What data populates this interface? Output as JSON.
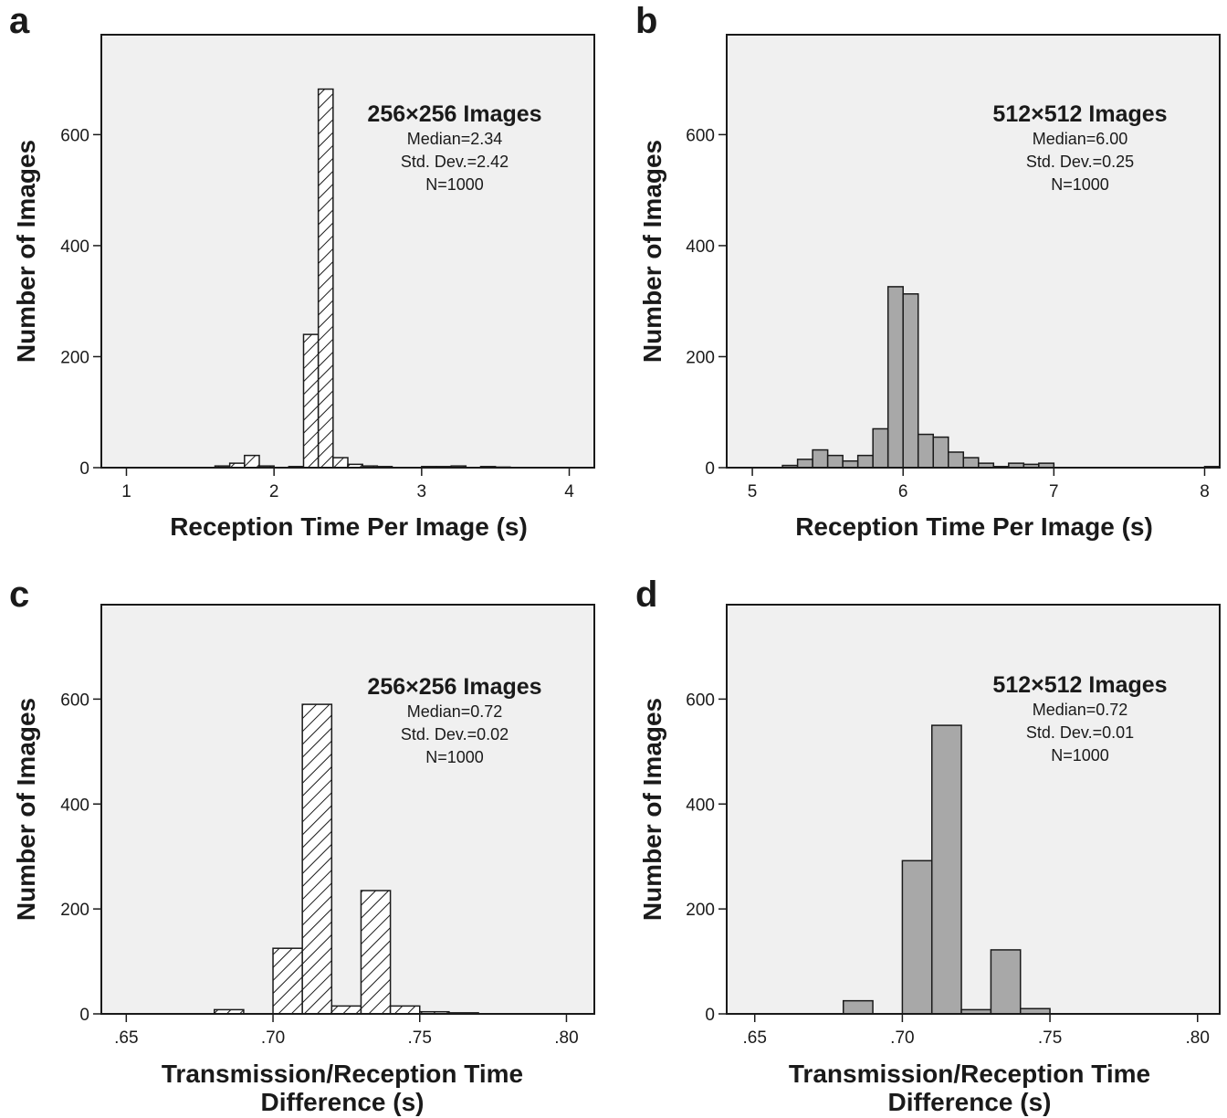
{
  "chart_data": [
    {
      "panel": "a",
      "type": "bar",
      "style": "hatched",
      "ylabel": "Number of Images",
      "xlabel_lines": [
        "Reception Time Per Image (s)"
      ],
      "annotation": {
        "title": "256×256 Images",
        "lines": [
          "Median=2.34",
          "Std. Dev.=2.42",
          "N=1000"
        ]
      },
      "xlim": [
        0.83,
        4.17
      ],
      "ylim": [
        0,
        780
      ],
      "xticks": [
        1,
        2,
        3,
        4
      ],
      "xtick_labels": [
        "1",
        "2",
        "3",
        "4"
      ],
      "yticks": [
        0,
        200,
        400,
        600
      ],
      "ytick_labels": [
        "0",
        "200",
        "400",
        "600"
      ],
      "bin_width": 0.1,
      "bins": [
        {
          "x0": 1.6,
          "count": 3
        },
        {
          "x0": 1.7,
          "count": 8
        },
        {
          "x0": 1.8,
          "count": 22
        },
        {
          "x0": 1.9,
          "count": 3
        },
        {
          "x0": 2.1,
          "count": 2
        },
        {
          "x0": 2.2,
          "count": 240
        },
        {
          "x0": 2.3,
          "count": 682
        },
        {
          "x0": 2.4,
          "count": 18
        },
        {
          "x0": 2.5,
          "count": 6
        },
        {
          "x0": 2.6,
          "count": 3
        },
        {
          "x0": 2.7,
          "count": 2
        },
        {
          "x0": 3.0,
          "count": 2
        },
        {
          "x0": 3.1,
          "count": 2
        },
        {
          "x0": 3.2,
          "count": 3
        },
        {
          "x0": 3.4,
          "count": 2
        },
        {
          "x0": 3.5,
          "count": 1
        }
      ]
    },
    {
      "panel": "b",
      "type": "bar",
      "style": "gray",
      "ylabel": "Number of Images",
      "xlabel_lines": [
        "Reception Time Per Image (s)"
      ],
      "annotation": {
        "title": "512×512 Images",
        "lines": [
          "Median=6.00",
          "Std. Dev.=0.25",
          "N=1000"
        ]
      },
      "xlim": [
        4.83,
        8.1
      ],
      "ylim": [
        0,
        780
      ],
      "xticks": [
        5,
        6,
        7,
        8
      ],
      "xtick_labels": [
        "5",
        "6",
        "7",
        "8"
      ],
      "yticks": [
        0,
        200,
        400,
        600
      ],
      "ytick_labels": [
        "0",
        "200",
        "400",
        "600"
      ],
      "bin_width": 0.1,
      "bins": [
        {
          "x0": 5.2,
          "count": 4
        },
        {
          "x0": 5.3,
          "count": 15
        },
        {
          "x0": 5.4,
          "count": 32
        },
        {
          "x0": 5.5,
          "count": 22
        },
        {
          "x0": 5.6,
          "count": 12
        },
        {
          "x0": 5.7,
          "count": 22
        },
        {
          "x0": 5.8,
          "count": 70
        },
        {
          "x0": 5.9,
          "count": 326
        },
        {
          "x0": 6.0,
          "count": 313
        },
        {
          "x0": 6.1,
          "count": 60
        },
        {
          "x0": 6.2,
          "count": 55
        },
        {
          "x0": 6.3,
          "count": 28
        },
        {
          "x0": 6.4,
          "count": 18
        },
        {
          "x0": 6.5,
          "count": 8
        },
        {
          "x0": 6.6,
          "count": 2
        },
        {
          "x0": 6.7,
          "count": 8
        },
        {
          "x0": 6.8,
          "count": 6
        },
        {
          "x0": 6.9,
          "count": 8
        },
        {
          "x0": 8.0,
          "count": 2
        }
      ]
    },
    {
      "panel": "c",
      "type": "bar",
      "style": "hatched",
      "ylabel": "Number of Images",
      "xlabel_lines": [
        "Transmission/Reception Time",
        "Difference (s)"
      ],
      "annotation": {
        "title": "256×256 Images",
        "lines": [
          "Median=0.72",
          "Std. Dev.=0.02",
          "N=1000"
        ]
      },
      "xlim": [
        0.6415,
        0.8095
      ],
      "ylim": [
        0,
        780
      ],
      "xticks": [
        0.65,
        0.7,
        0.75,
        0.8
      ],
      "xtick_labels": [
        ".65",
        ".70",
        ".75",
        ".80"
      ],
      "yticks": [
        0,
        200,
        400,
        600
      ],
      "ytick_labels": [
        "0",
        "200",
        "400",
        "600"
      ],
      "bin_width": 0.01,
      "bins": [
        {
          "x0": 0.68,
          "count": 8
        },
        {
          "x0": 0.7,
          "count": 125
        },
        {
          "x0": 0.71,
          "count": 590
        },
        {
          "x0": 0.72,
          "count": 15
        },
        {
          "x0": 0.73,
          "count": 235
        },
        {
          "x0": 0.74,
          "count": 15
        },
        {
          "x0": 0.75,
          "count": 4
        },
        {
          "x0": 0.76,
          "count": 2
        }
      ]
    },
    {
      "panel": "d",
      "type": "bar",
      "style": "gray",
      "ylabel": "Number of Images",
      "xlabel_lines": [
        "Transmission/Reception Time",
        "Difference (s)"
      ],
      "annotation": {
        "title": "512×512 Images",
        "lines": [
          "Median=0.72",
          "Std. Dev.=0.01",
          "N=1000"
        ]
      },
      "xlim": [
        0.6405,
        0.8075
      ],
      "ylim": [
        0,
        780
      ],
      "xticks": [
        0.65,
        0.7,
        0.75,
        0.8
      ],
      "xtick_labels": [
        ".65",
        ".70",
        ".75",
        ".80"
      ],
      "yticks": [
        0,
        200,
        400,
        600
      ],
      "ytick_labels": [
        "0",
        "200",
        "400",
        "600"
      ],
      "bin_width": 0.01,
      "bins": [
        {
          "x0": 0.68,
          "count": 25
        },
        {
          "x0": 0.7,
          "count": 292
        },
        {
          "x0": 0.71,
          "count": 550
        },
        {
          "x0": 0.72,
          "count": 8
        },
        {
          "x0": 0.73,
          "count": 122
        },
        {
          "x0": 0.74,
          "count": 10
        }
      ]
    }
  ]
}
